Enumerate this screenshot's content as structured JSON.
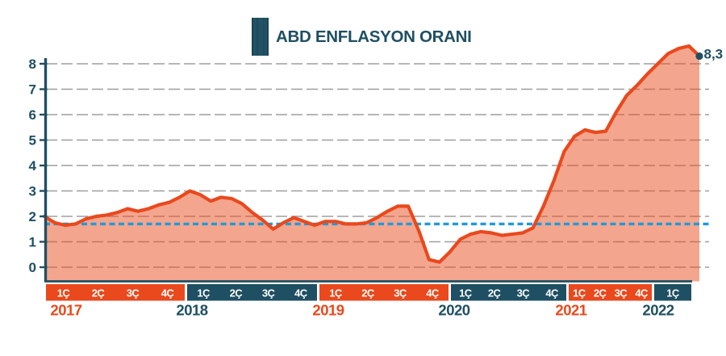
{
  "header": {
    "title": "ABD ENFLASYON ORANI"
  },
  "chart_data": {
    "type": "area",
    "title": "ABD ENFLASYON ORANI",
    "ylabel": "",
    "xlabel": "",
    "ylim": [
      0,
      8
    ],
    "yticks": [
      8,
      7,
      6,
      5,
      4,
      3,
      2,
      1,
      0
    ],
    "grid": true,
    "legend": "none",
    "reference_line": {
      "value": 1.7,
      "style": "dashed"
    },
    "series": [
      {
        "name": "ABD enflasyon orani (%)",
        "frequency": "monthly, 2017 1C - 2022 1C+ (estimated from plot)",
        "values": [
          2.0,
          1.75,
          1.65,
          1.7,
          1.9,
          2.0,
          2.05,
          2.15,
          2.3,
          2.2,
          2.3,
          2.45,
          2.55,
          2.75,
          3.0,
          2.85,
          2.6,
          2.75,
          2.7,
          2.5,
          2.15,
          1.85,
          1.5,
          1.75,
          1.95,
          1.8,
          1.65,
          1.8,
          1.8,
          1.7,
          1.7,
          1.75,
          1.95,
          2.2,
          2.4,
          2.4,
          1.45,
          0.3,
          0.2,
          0.6,
          1.1,
          1.3,
          1.4,
          1.35,
          1.25,
          1.3,
          1.35,
          1.55,
          2.4,
          3.4,
          4.55,
          5.15,
          5.4,
          5.3,
          5.35,
          6.1,
          6.75,
          7.15,
          7.6,
          8.0,
          8.4,
          8.6,
          8.7,
          8.3
        ]
      }
    ],
    "end_point": {
      "label": "8,3",
      "value": 8.3
    },
    "x_bands": [
      {
        "year": "2017",
        "quarters": [
          "1Ç",
          "2Ç",
          "3Ç",
          "4Ç"
        ],
        "tone": "orange"
      },
      {
        "year": "2018",
        "quarters": [
          "1Ç",
          "2Ç",
          "3Ç",
          "4Ç"
        ],
        "tone": "teal"
      },
      {
        "year": "2019",
        "quarters": [
          "1Ç",
          "2Ç",
          "3Ç",
          "4Ç"
        ],
        "tone": "orange"
      },
      {
        "year": "2020",
        "quarters": [
          "1Ç",
          "2Ç",
          "3Ç",
          "4Ç"
        ],
        "tone": "teal"
      },
      {
        "year": "2021",
        "quarters": [
          "1Ç",
          "2Ç",
          "3Ç",
          "4Ç"
        ],
        "tone": "orange"
      },
      {
        "year": "2022",
        "quarters": [
          "1Ç"
        ],
        "tone": "teal"
      }
    ],
    "colors": {
      "line": "#e9491d",
      "fill": "rgba(233,76,27,0.5)",
      "teal": "#1f4f63",
      "orange": "#e9491d",
      "reference": "#1e9bdc",
      "grid": "#9e9e9e",
      "quarter_text": "#ffffff",
      "background": "#ffffff"
    }
  }
}
